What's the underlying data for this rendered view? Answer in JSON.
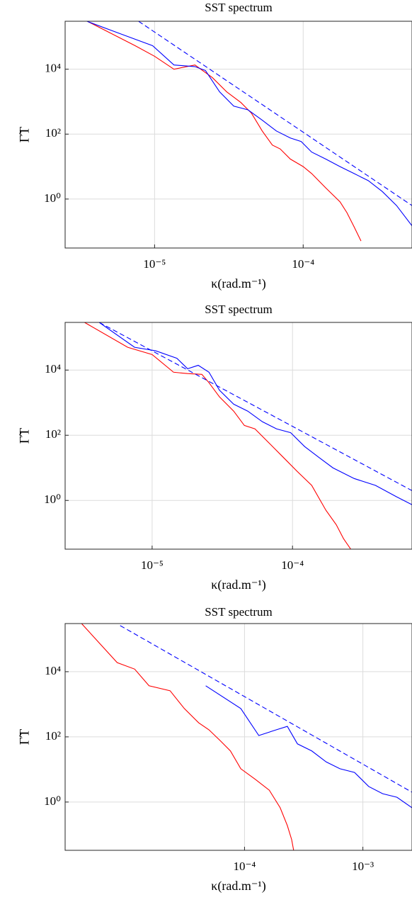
{
  "chart_data": [
    {
      "type": "line",
      "title": "SST spectrum",
      "xlabel": "κ(rad.m⁻¹)",
      "ylabel": "Γ̃T",
      "xscale": "log",
      "yscale": "log",
      "grid": true,
      "xlim": [
        2.5e-06,
        0.00054
      ],
      "ylim": [
        0.031,
        300000
      ],
      "xticks": [
        {
          "value": 1e-05,
          "label": "10⁻⁵"
        },
        {
          "value": 0.0001,
          "label": "10⁻⁴"
        }
      ],
      "yticks": [
        {
          "value": 1,
          "label": "10⁰"
        },
        {
          "value": 100,
          "label": "10²"
        },
        {
          "value": 10000,
          "label": "10⁴"
        }
      ],
      "series": [
        {
          "color": "#ff0000",
          "dash": false,
          "x": [
            3.5e-06,
            7.4e-06,
            1e-05,
            1.35e-05,
            1.87e-05,
            2.45e-05,
            3.06e-05,
            3.81e-05,
            4.49e-05,
            5.3e-05,
            6.2e-05,
            7e-05,
            8.2e-05,
            0.0001,
            0.000114,
            0.000142,
            0.000177,
            0.000197,
            0.00022,
            0.000245
          ],
          "values": [
            306000,
            53000,
            25000,
            10000,
            13500,
            5500,
            2000,
            940,
            440,
            125,
            46,
            35,
            17,
            10,
            6.1,
            2.2,
            0.82,
            0.38,
            0.14,
            0.051
          ]
        },
        {
          "color": "#0000ff",
          "dash": false,
          "x": [
            3.5e-06,
            5.9e-06,
            9.7e-06,
            1.35e-05,
            1.87e-05,
            2.2e-05,
            2.74e-05,
            3.41e-05,
            4.25e-05,
            5.3e-05,
            6.6e-05,
            8.2e-05,
            9.7e-05,
            0.000114,
            0.000142,
            0.000177,
            0.00022,
            0.000274,
            0.000341,
            0.000425,
            0.00054
          ],
          "values": [
            300000,
            123000,
            53000,
            13500,
            12000,
            9100,
            2000,
            730,
            560,
            270,
            125,
            76,
            59,
            28,
            17,
            10,
            6.1,
            3.7,
            1.7,
            0.63,
            0.15
          ]
        },
        {
          "color": "#0000ff",
          "dash": true,
          "x": [
            7.8e-06,
            0.00054
          ],
          "values": [
            300000,
            0.63
          ]
        }
      ]
    },
    {
      "type": "line",
      "title": "SST spectrum",
      "xlabel": "κ(rad.m⁻¹)",
      "ylabel": "Γ̃T",
      "xscale": "log",
      "yscale": "log",
      "grid": true,
      "xlim": [
        2.4e-06,
        0.00071
      ],
      "ylim": [
        0.032,
        290000
      ],
      "xticks": [
        {
          "value": 1e-05,
          "label": "10⁻⁵"
        },
        {
          "value": 0.0001,
          "label": "10⁻⁴"
        }
      ],
      "yticks": [
        {
          "value": 1,
          "label": "10⁰"
        },
        {
          "value": 100,
          "label": "10²"
        },
        {
          "value": 10000,
          "label": "10⁴"
        }
      ],
      "series": [
        {
          "color": "#ff0000",
          "dash": false,
          "x": [
            3.3e-06,
            6.7e-06,
            1e-05,
            1.42e-05,
            1.79e-05,
            2.26e-05,
            2.54e-05,
            3.02e-05,
            3.81e-05,
            4.54e-05,
            5.4e-05,
            6.8e-05,
            8.6e-05,
            0.000108,
            0.000137,
            0.000173,
            0.000205,
            0.000231,
            0.00026
          ],
          "values": [
            290000,
            50000,
            30000,
            8600,
            7800,
            7400,
            4100,
            1500,
            550,
            200,
            157,
            58,
            21,
            7.8,
            2.9,
            0.5,
            0.18,
            0.067,
            0.032
          ]
        },
        {
          "color": "#0000ff",
          "dash": false,
          "x": [
            4.2e-06,
            7.5e-06,
            1.06e-05,
            1.5e-05,
            1.79e-05,
            2.13e-05,
            2.54e-05,
            3.02e-05,
            3.81e-05,
            4.8e-05,
            6.1e-05,
            7.7e-05,
            9.7e-05,
            0.000122,
            0.000154,
            0.000194,
            0.000275,
            0.00039,
            0.00055,
            0.00071
          ],
          "values": [
            290000,
            50000,
            39000,
            23000,
            11000,
            14000,
            8600,
            2400,
            900,
            550,
            260,
            157,
            120,
            45,
            21,
            10,
            4.7,
            2.9,
            1.3,
            0.74
          ]
        },
        {
          "color": "#0000ff",
          "dash": true,
          "x": [
            4.2e-06,
            0.00071
          ],
          "values": [
            290000,
            2.0
          ]
        }
      ]
    },
    {
      "type": "line",
      "title": "SST spectrum",
      "xlabel": "κ(rad.m⁻¹)",
      "ylabel": "Γ̃T",
      "xscale": "log",
      "yscale": "log",
      "grid": true,
      "xlim": [
        3.05e-06,
        0.0026
      ],
      "ylim": [
        0.033,
        300000
      ],
      "xticks": [
        {
          "value": 0.0001,
          "label": "10⁻⁴"
        },
        {
          "value": 0.001,
          "label": "10⁻³"
        }
      ],
      "yticks": [
        {
          "value": 1,
          "label": "10⁰"
        },
        {
          "value": 100,
          "label": "10²"
        },
        {
          "value": 10000,
          "label": "10⁴"
        }
      ],
      "series": [
        {
          "color": "#ff0000",
          "dash": false,
          "x": [
            4.2e-06,
            8.4e-06,
            1.18e-05,
            1.56e-05,
            2.35e-05,
            3.1e-05,
            4.1e-05,
            5e-05,
            6.2e-05,
            7.6e-05,
            9.3e-05,
            0.000123,
            0.000162,
            0.0002,
            0.00023,
            0.00025,
            0.00026
          ],
          "values": [
            300000,
            19000,
            12000,
            3700,
            2600,
            740,
            270,
            165,
            78,
            37,
            10.5,
            5.0,
            2.3,
            0.67,
            0.19,
            0.071,
            0.033
          ]
        },
        {
          "color": "#0000ff",
          "dash": false,
          "x": [
            4.7e-05,
            9.3e-05,
            0.000132,
            0.000186,
            0.00023,
            0.00028,
            0.00037,
            0.00049,
            0.00064,
            0.00085,
            0.00112,
            0.00147,
            0.00194,
            0.0026
          ],
          "values": [
            3700,
            740,
            110,
            165,
            210,
            61,
            37,
            17,
            10.5,
            8.1,
            3.0,
            1.8,
            1.4,
            0.67
          ]
        },
        {
          "color": "#0000ff",
          "dash": true,
          "x": [
            8.9e-06,
            0.0026
          ],
          "values": [
            260000,
            2.0
          ]
        }
      ]
    }
  ]
}
